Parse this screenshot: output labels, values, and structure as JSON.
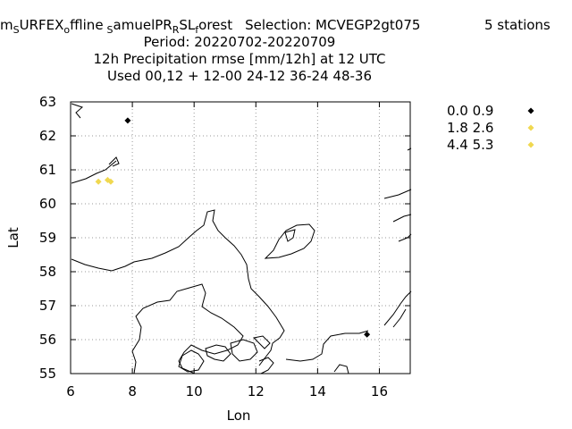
{
  "chart_data": {
    "type": "scatter",
    "title_lines": [
      "",
      "Period: 20220702-20220709",
      "12h Precipitation rmse [mm/12h] at  12 UTC",
      "Used  00,12  + 12-00 24-12 36-24 48-36"
    ],
    "title_parts": {
      "m_label": "m",
      "sub_s1": "S",
      "urfex": "URFEX",
      "sub_o": "o",
      "ffline": "ffline",
      "sub_s2": "S",
      "amuelpr": "amuelPR",
      "sub_r": "R",
      "sl": "SL",
      "sub_f": "f",
      "orest": "orest",
      "selection": "Selection: MCVEGP2gt075",
      "stations": "5 stations"
    },
    "xlabel": "Lon",
    "ylabel": "Lat",
    "xlim": [
      6,
      17
    ],
    "ylim": [
      55,
      63
    ],
    "xticks": [
      6,
      8,
      10,
      12,
      14,
      16
    ],
    "yticks": [
      55,
      56,
      57,
      58,
      59,
      60,
      61,
      62,
      63
    ],
    "grid": true,
    "legend_position": "right, outside plot",
    "series": [
      {
        "name": "0.0 0.9",
        "color": "#000000",
        "points": [
          [
            7.85,
            62.45
          ],
          [
            15.6,
            56.15
          ]
        ]
      },
      {
        "name": "1.8 2.6",
        "color": "#f0d850",
        "points": [
          [
            6.9,
            60.65
          ],
          [
            7.2,
            60.7
          ]
        ]
      },
      {
        "name": "4.4 5.3",
        "color": "#f0d850",
        "points": [
          [
            7.3,
            60.65
          ]
        ]
      }
    ]
  }
}
